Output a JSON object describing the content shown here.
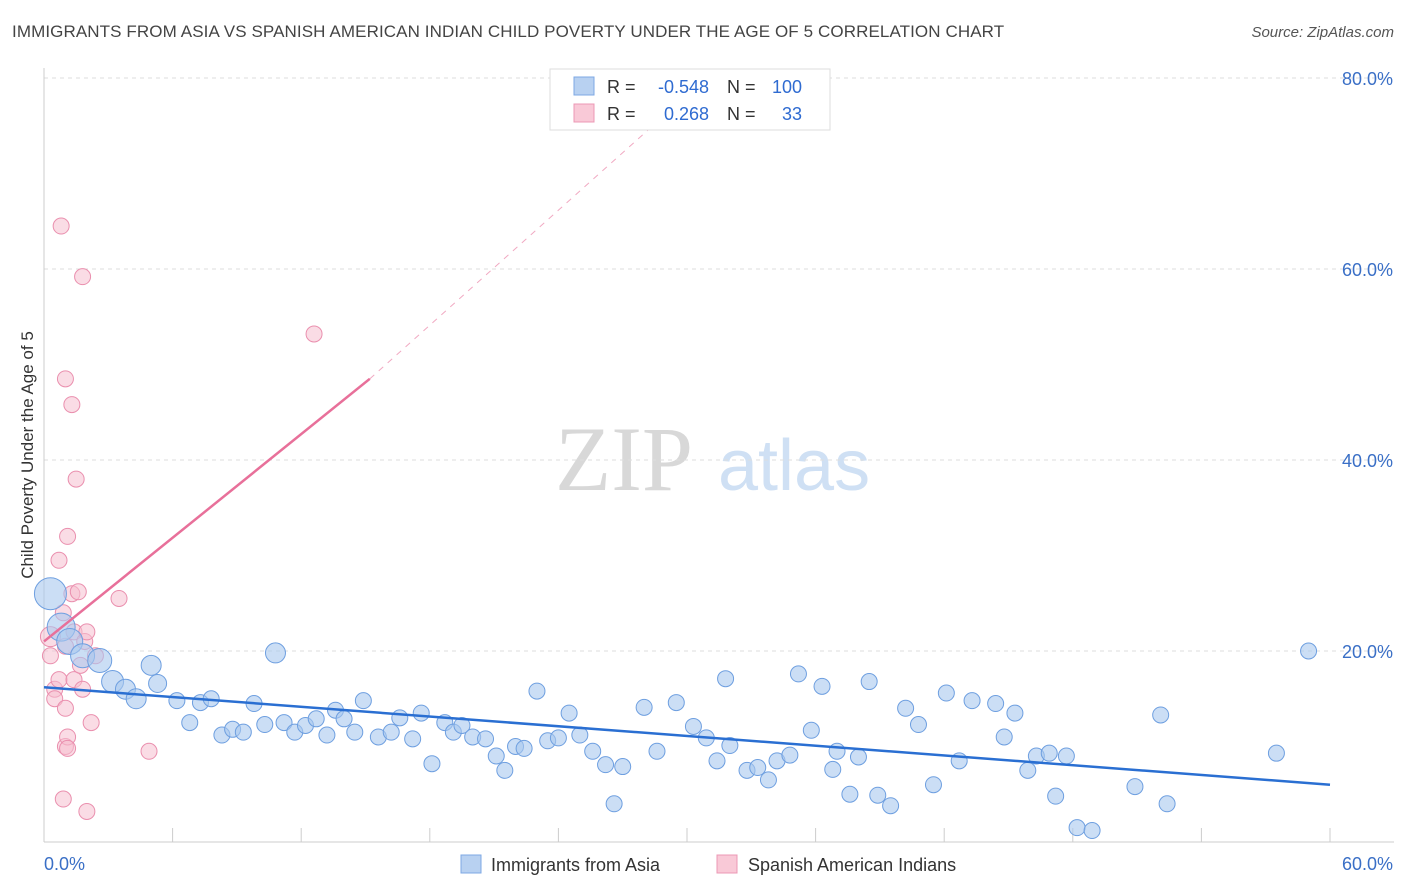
{
  "title": "IMMIGRANTS FROM ASIA VS SPANISH AMERICAN INDIAN CHILD POVERTY UNDER THE AGE OF 5 CORRELATION CHART",
  "source": "Source: ZipAtlas.com",
  "watermark": {
    "zip": "ZIP",
    "atlas": "atlas"
  },
  "colors": {
    "blue_fill": "#a9c8ef",
    "blue_stroke": "#6e9fe0",
    "blue_line": "#2a6fd2",
    "pink_fill": "#f6bfd0",
    "pink_stroke": "#ea8fae",
    "pink_line": "#e8709a",
    "axis_text": "#3a6fc6"
  },
  "stats": {
    "r_label": "R =",
    "n_label": "N =",
    "series1": {
      "r": "-0.548",
      "n": "100"
    },
    "series2": {
      "r": "0.268",
      "n": "33"
    }
  },
  "chart_data": {
    "type": "scatter",
    "title": "IMMIGRANTS FROM ASIA VS SPANISH AMERICAN INDIAN CHILD POVERTY UNDER THE AGE OF 5 CORRELATION CHART",
    "xlabel": "",
    "ylabel": "Child Poverty Under the Age of 5",
    "xlim": [
      0,
      60
    ],
    "ylim": [
      0,
      80
    ],
    "x_ticks": [
      0,
      60
    ],
    "x_tick_labels": [
      "0.0%",
      "60.0%"
    ],
    "y_ticks": [
      20,
      40,
      60,
      80
    ],
    "y_tick_labels": [
      "20.0%",
      "40.0%",
      "60.0%",
      "80.0%"
    ],
    "legend": [
      "Immigrants from Asia",
      "Spanish American Indians"
    ],
    "series": [
      {
        "name": "Immigrants from Asia",
        "trend": {
          "x": [
            0,
            60
          ],
          "y": [
            16.2,
            6.0
          ],
          "style": "solid"
        },
        "points": [
          {
            "x": 0.3,
            "y": 26.0,
            "s": 16
          },
          {
            "x": 0.8,
            "y": 22.5,
            "s": 14
          },
          {
            "x": 1.2,
            "y": 21.0,
            "s": 13
          },
          {
            "x": 1.8,
            "y": 19.5,
            "s": 12
          },
          {
            "x": 2.6,
            "y": 19.0,
            "s": 12
          },
          {
            "x": 3.2,
            "y": 16.8,
            "s": 11
          },
          {
            "x": 3.8,
            "y": 16.0,
            "s": 10
          },
          {
            "x": 4.3,
            "y": 15.0,
            "s": 10
          },
          {
            "x": 5.0,
            "y": 18.5,
            "s": 10
          },
          {
            "x": 5.3,
            "y": 16.6,
            "s": 9
          },
          {
            "x": 6.2,
            "y": 14.8,
            "s": 8
          },
          {
            "x": 6.8,
            "y": 12.5,
            "s": 8
          },
          {
            "x": 7.3,
            "y": 14.6,
            "s": 8
          },
          {
            "x": 7.8,
            "y": 15.0,
            "s": 8
          },
          {
            "x": 8.3,
            "y": 11.2,
            "s": 8
          },
          {
            "x": 8.8,
            "y": 11.8,
            "s": 8
          },
          {
            "x": 9.3,
            "y": 11.5,
            "s": 8
          },
          {
            "x": 9.8,
            "y": 14.5,
            "s": 8
          },
          {
            "x": 10.3,
            "y": 12.3,
            "s": 8
          },
          {
            "x": 10.8,
            "y": 19.8,
            "s": 10
          },
          {
            "x": 11.2,
            "y": 12.5,
            "s": 8
          },
          {
            "x": 11.7,
            "y": 11.5,
            "s": 8
          },
          {
            "x": 12.2,
            "y": 12.2,
            "s": 8
          },
          {
            "x": 12.7,
            "y": 12.9,
            "s": 8
          },
          {
            "x": 13.2,
            "y": 11.2,
            "s": 8
          },
          {
            "x": 13.6,
            "y": 13.8,
            "s": 8
          },
          {
            "x": 14.0,
            "y": 12.9,
            "s": 8
          },
          {
            "x": 14.5,
            "y": 11.5,
            "s": 8
          },
          {
            "x": 14.9,
            "y": 14.8,
            "s": 8
          },
          {
            "x": 15.6,
            "y": 11.0,
            "s": 8
          },
          {
            "x": 16.2,
            "y": 11.5,
            "s": 8
          },
          {
            "x": 16.6,
            "y": 13.0,
            "s": 8
          },
          {
            "x": 17.2,
            "y": 10.8,
            "s": 8
          },
          {
            "x": 17.6,
            "y": 13.5,
            "s": 8
          },
          {
            "x": 18.1,
            "y": 8.2,
            "s": 8
          },
          {
            "x": 18.7,
            "y": 12.5,
            "s": 8
          },
          {
            "x": 19.1,
            "y": 11.5,
            "s": 8
          },
          {
            "x": 19.5,
            "y": 12.2,
            "s": 8
          },
          {
            "x": 20.0,
            "y": 11.0,
            "s": 8
          },
          {
            "x": 20.6,
            "y": 10.8,
            "s": 8
          },
          {
            "x": 21.1,
            "y": 9.0,
            "s": 8
          },
          {
            "x": 21.5,
            "y": 7.5,
            "s": 8
          },
          {
            "x": 22.0,
            "y": 10.0,
            "s": 8
          },
          {
            "x": 22.4,
            "y": 9.8,
            "s": 8
          },
          {
            "x": 23.0,
            "y": 15.8,
            "s": 8
          },
          {
            "x": 23.5,
            "y": 10.6,
            "s": 8
          },
          {
            "x": 24.0,
            "y": 10.9,
            "s": 8
          },
          {
            "x": 24.5,
            "y": 13.5,
            "s": 8
          },
          {
            "x": 25.0,
            "y": 11.2,
            "s": 8
          },
          {
            "x": 25.6,
            "y": 9.5,
            "s": 8
          },
          {
            "x": 26.2,
            "y": 8.1,
            "s": 8
          },
          {
            "x": 26.6,
            "y": 4.0,
            "s": 8
          },
          {
            "x": 27.0,
            "y": 7.9,
            "s": 8
          },
          {
            "x": 28.0,
            "y": 14.1,
            "s": 8
          },
          {
            "x": 28.6,
            "y": 9.5,
            "s": 8
          },
          {
            "x": 29.5,
            "y": 14.6,
            "s": 8
          },
          {
            "x": 30.3,
            "y": 12.1,
            "s": 8
          },
          {
            "x": 30.9,
            "y": 10.9,
            "s": 8
          },
          {
            "x": 31.4,
            "y": 8.5,
            "s": 8
          },
          {
            "x": 31.8,
            "y": 17.1,
            "s": 8
          },
          {
            "x": 32.0,
            "y": 10.1,
            "s": 8
          },
          {
            "x": 32.8,
            "y": 7.5,
            "s": 8
          },
          {
            "x": 33.3,
            "y": 7.8,
            "s": 8
          },
          {
            "x": 33.8,
            "y": 6.5,
            "s": 8
          },
          {
            "x": 34.2,
            "y": 8.5,
            "s": 8
          },
          {
            "x": 34.8,
            "y": 9.1,
            "s": 8
          },
          {
            "x": 35.2,
            "y": 17.6,
            "s": 8
          },
          {
            "x": 35.8,
            "y": 11.7,
            "s": 8
          },
          {
            "x": 36.3,
            "y": 16.3,
            "s": 8
          },
          {
            "x": 36.8,
            "y": 7.6,
            "s": 8
          },
          {
            "x": 37.0,
            "y": 9.5,
            "s": 8
          },
          {
            "x": 37.6,
            "y": 5.0,
            "s": 8
          },
          {
            "x": 38.0,
            "y": 8.9,
            "s": 8
          },
          {
            "x": 38.5,
            "y": 16.8,
            "s": 8
          },
          {
            "x": 38.9,
            "y": 4.9,
            "s": 8
          },
          {
            "x": 39.5,
            "y": 3.8,
            "s": 8
          },
          {
            "x": 40.2,
            "y": 14.0,
            "s": 8
          },
          {
            "x": 40.8,
            "y": 12.3,
            "s": 8
          },
          {
            "x": 41.5,
            "y": 6.0,
            "s": 8
          },
          {
            "x": 42.1,
            "y": 15.6,
            "s": 8
          },
          {
            "x": 42.7,
            "y": 8.5,
            "s": 8
          },
          {
            "x": 43.3,
            "y": 14.8,
            "s": 8
          },
          {
            "x": 44.4,
            "y": 14.5,
            "s": 8
          },
          {
            "x": 44.8,
            "y": 11.0,
            "s": 8
          },
          {
            "x": 45.3,
            "y": 13.5,
            "s": 8
          },
          {
            "x": 45.9,
            "y": 7.5,
            "s": 8
          },
          {
            "x": 46.3,
            "y": 9.0,
            "s": 8
          },
          {
            "x": 46.9,
            "y": 9.3,
            "s": 8
          },
          {
            "x": 47.2,
            "y": 4.8,
            "s": 8
          },
          {
            "x": 47.7,
            "y": 9.0,
            "s": 8
          },
          {
            "x": 48.2,
            "y": 1.5,
            "s": 8
          },
          {
            "x": 48.9,
            "y": 1.2,
            "s": 8
          },
          {
            "x": 50.9,
            "y": 5.8,
            "s": 8
          },
          {
            "x": 52.1,
            "y": 13.3,
            "s": 8
          },
          {
            "x": 52.4,
            "y": 4.0,
            "s": 8
          },
          {
            "x": 57.5,
            "y": 9.3,
            "s": 8
          },
          {
            "x": 59.0,
            "y": 20.0,
            "s": 8
          }
        ]
      },
      {
        "name": "Spanish American Indians",
        "trend": {
          "x": [
            0,
            15.2
          ],
          "y": [
            21.0,
            48.5
          ],
          "style": "solid",
          "extension_x": [
            15.2,
            30
          ],
          "extension_y": [
            48.5,
            78.2
          ],
          "extension_style": "dashed"
        },
        "points": [
          {
            "x": 0.3,
            "y": 21.5,
            "s": 10
          },
          {
            "x": 0.3,
            "y": 19.5,
            "s": 8
          },
          {
            "x": 0.5,
            "y": 16.0,
            "s": 8
          },
          {
            "x": 0.5,
            "y": 15.0,
            "s": 8
          },
          {
            "x": 0.7,
            "y": 29.5,
            "s": 8
          },
          {
            "x": 0.7,
            "y": 17.0,
            "s": 8
          },
          {
            "x": 0.8,
            "y": 64.5,
            "s": 8
          },
          {
            "x": 0.9,
            "y": 24.0,
            "s": 8
          },
          {
            "x": 0.9,
            "y": 4.5,
            "s": 8
          },
          {
            "x": 1.0,
            "y": 48.5,
            "s": 8
          },
          {
            "x": 1.0,
            "y": 20.5,
            "s": 8
          },
          {
            "x": 1.0,
            "y": 14.0,
            "s": 8
          },
          {
            "x": 1.0,
            "y": 10.0,
            "s": 8
          },
          {
            "x": 1.1,
            "y": 11.0,
            "s": 8
          },
          {
            "x": 1.1,
            "y": 9.8,
            "s": 8
          },
          {
            "x": 1.1,
            "y": 32.0,
            "s": 8
          },
          {
            "x": 1.3,
            "y": 26.0,
            "s": 8
          },
          {
            "x": 1.3,
            "y": 45.8,
            "s": 8
          },
          {
            "x": 1.4,
            "y": 17.0,
            "s": 8
          },
          {
            "x": 1.4,
            "y": 22.0,
            "s": 8
          },
          {
            "x": 1.5,
            "y": 38.0,
            "s": 8
          },
          {
            "x": 1.6,
            "y": 26.2,
            "s": 8
          },
          {
            "x": 1.7,
            "y": 18.5,
            "s": 8
          },
          {
            "x": 1.8,
            "y": 59.2,
            "s": 8
          },
          {
            "x": 1.8,
            "y": 16.0,
            "s": 8
          },
          {
            "x": 1.9,
            "y": 21.0,
            "s": 8
          },
          {
            "x": 2.0,
            "y": 22.0,
            "s": 8
          },
          {
            "x": 2.0,
            "y": 3.2,
            "s": 8
          },
          {
            "x": 2.2,
            "y": 12.5,
            "s": 8
          },
          {
            "x": 2.4,
            "y": 19.5,
            "s": 8
          },
          {
            "x": 3.5,
            "y": 25.5,
            "s": 8
          },
          {
            "x": 4.9,
            "y": 9.5,
            "s": 8
          },
          {
            "x": 12.6,
            "y": 53.2,
            "s": 8
          }
        ]
      }
    ]
  }
}
